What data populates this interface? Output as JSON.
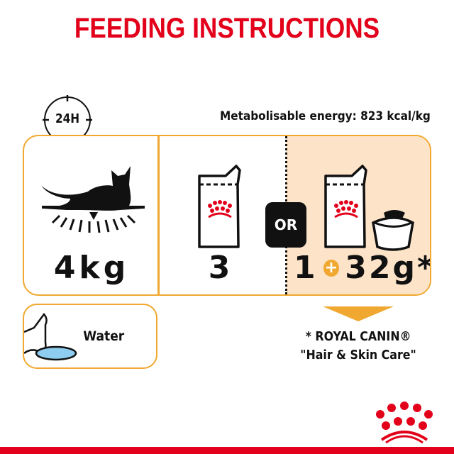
{
  "title": "FEEDING INSTRUCTIONS",
  "clock_label": "24H",
  "energy": "Metabolisable energy: 823 kcal/kg",
  "weight": "4kg",
  "wet_only_count": "3",
  "or_label": "OR",
  "mix": {
    "pouches": "1",
    "plus": "+",
    "dry_amount": "32g*"
  },
  "water_label": "Water",
  "footnote": {
    "line1": "* ROYAL CANIN®",
    "line2": "\"Hair & Skin Care\""
  },
  "colors": {
    "brand_red": "#e2001a",
    "accent_orange": "#f0a830",
    "mix_bg": "#fde3c8",
    "water_blue": "#8ecdf0"
  },
  "icons": [
    "clock-icon",
    "cat-lying-icon",
    "pouch-icon",
    "bowl-icon",
    "cat-drinking-icon",
    "royal-canin-crown-logo"
  ]
}
